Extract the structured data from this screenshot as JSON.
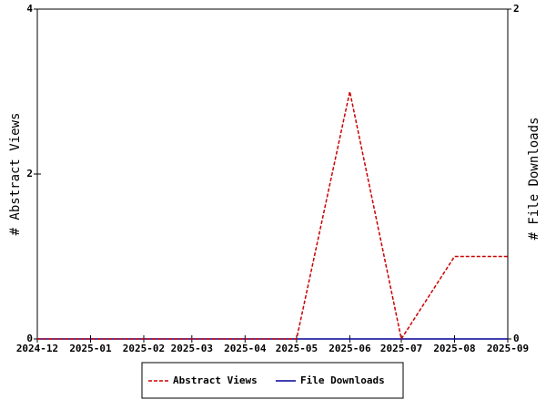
{
  "chart_data": {
    "type": "line",
    "x": [
      "2024-12",
      "2025-01",
      "2025-02",
      "2025-03",
      "2025-04",
      "2025-05",
      "2025-06",
      "2025-07",
      "2025-08",
      "2025-09"
    ],
    "xlim": [
      "2024-12",
      "2025-09"
    ],
    "y_label": "# Abstract Views",
    "y2_label": "# File Downloads",
    "ylim": [
      0,
      4
    ],
    "yticks": [
      0,
      2,
      4
    ],
    "y2lim": [
      0,
      2
    ],
    "y2ticks": [
      0,
      2
    ],
    "series": [
      {
        "name": "Abstract Views",
        "color": "#cc0000",
        "dash": true,
        "values": [
          0,
          0,
          0,
          0,
          0,
          0,
          3,
          0,
          1,
          1
        ]
      },
      {
        "name": "File Downloads",
        "color": "#000099",
        "dash": false,
        "axis": "y2",
        "values": [
          0,
          0,
          0,
          0,
          0,
          0,
          0,
          0,
          0,
          0
        ]
      }
    ]
  }
}
